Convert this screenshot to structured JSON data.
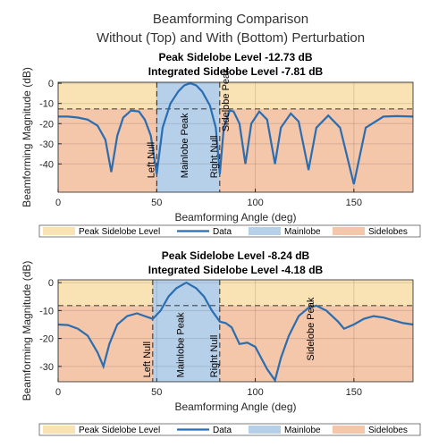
{
  "suptitle": [
    "Beamforming Comparison",
    "Without (Top) and With (Bottom) Perturbation"
  ],
  "chart_data": [
    {
      "type": "line",
      "title": "Peak Sidelobe Level -12.73 dB",
      "subtitle": "Integrated Sidelobe Level -7.81 dB",
      "xlabel": "Beamforming Angle (deg)",
      "ylabel": "Beamforming Magnitude (dB)",
      "xlim": [
        0,
        180
      ],
      "ylim": [
        -54,
        0.5
      ],
      "xticks": [
        0,
        50,
        100,
        150
      ],
      "yticks": [
        -40,
        -30,
        -20,
        -10,
        0
      ],
      "grid": true,
      "peak_sidelobe": {
        "name": "Peak Sidelobe Level",
        "value": -12.73,
        "color": "#f9e2b3"
      },
      "mainlobe": {
        "name": "Mainlobe",
        "left_null": 50,
        "right_null": 82,
        "color": "#b7d0ea"
      },
      "sidelobes": {
        "name": "Sidelobes",
        "color": "#f4c6aa"
      },
      "x": [
        0,
        5,
        10,
        15,
        20,
        24,
        27,
        30,
        33,
        37,
        41,
        44,
        47,
        50,
        53,
        57,
        61,
        64,
        67,
        70,
        73,
        77,
        80,
        82,
        84,
        87,
        89,
        92,
        95,
        98,
        102,
        106,
        110,
        113,
        118,
        122,
        127,
        131,
        137,
        143,
        150,
        156,
        165,
        172,
        180
      ],
      "series": [
        {
          "name": "Data",
          "color": "#2a6db0",
          "values": [
            -16.5,
            -16.5,
            -17,
            -18,
            -21,
            -28,
            -44,
            -26,
            -17,
            -13.5,
            -14,
            -18,
            -26,
            -45,
            -22,
            -10,
            -4,
            -1,
            0,
            -1,
            -4,
            -11,
            -22,
            -45,
            -22,
            -13.5,
            -14,
            -20,
            -40,
            -20,
            -14,
            -18,
            -40,
            -22,
            -15,
            -19,
            -43,
            -22,
            -16,
            -22,
            -50,
            -22,
            -16.5,
            -16.3,
            -16.5
          ]
        }
      ],
      "annotations": [
        {
          "text": "Left Null",
          "x": 50,
          "y": -47
        },
        {
          "text": "Mainlobe Peak",
          "x": 67,
          "y": -47
        },
        {
          "text": "Right Null",
          "x": 82,
          "y": -47
        },
        {
          "text": "Sidelobe Peak",
          "x": 88,
          "y": -24
        }
      ]
    },
    {
      "type": "line",
      "title": "Peak Sidelobe Level -8.24 dB",
      "subtitle": "Integrated Sidelobe Level -4.18 dB",
      "xlabel": "Beamforming Angle (deg)",
      "ylabel": "Beamforming Magnitude (dB)",
      "xlim": [
        0,
        180
      ],
      "ylim": [
        -35.5,
        1
      ],
      "xticks": [
        0,
        50,
        100,
        150
      ],
      "yticks": [
        -30,
        -20,
        -10,
        0
      ],
      "grid": true,
      "peak_sidelobe": {
        "name": "Peak Sidelobe Level",
        "value": -8.24,
        "color": "#f9e2b3"
      },
      "mainlobe": {
        "name": "Mainlobe",
        "left_null": 48,
        "right_null": 82,
        "color": "#b7d0ea"
      },
      "sidelobes": {
        "name": "Sidelobes",
        "color": "#f4c6aa"
      },
      "x": [
        0,
        5,
        10,
        15,
        20,
        23,
        26,
        30,
        35,
        40,
        44,
        48,
        52,
        56,
        60,
        65,
        70,
        74,
        78,
        82,
        85,
        88,
        92,
        96,
        100,
        103,
        106,
        110,
        113,
        117,
        122,
        127,
        131,
        136,
        142,
        145,
        150,
        155,
        160,
        165,
        170,
        175,
        180
      ],
      "series": [
        {
          "name": "Data",
          "color": "#2a6db0",
          "values": [
            -15,
            -15.2,
            -16.5,
            -19,
            -25,
            -30,
            -22,
            -15,
            -12,
            -11,
            -12,
            -13,
            -10,
            -5,
            -2,
            0,
            -2,
            -5,
            -10,
            -14,
            -14.5,
            -16,
            -22,
            -21.5,
            -23,
            -27,
            -31,
            -35,
            -27,
            -19,
            -12,
            -9,
            -8.24,
            -10,
            -14,
            -16.5,
            -15,
            -13,
            -12,
            -12.5,
            -13.5,
            -14.5,
            -15
          ]
        }
      ],
      "annotations": [
        {
          "text": "Left Null",
          "x": 48,
          "y": -34
        },
        {
          "text": "Mainlobe Peak",
          "x": 65,
          "y": -34
        },
        {
          "text": "Right Null",
          "x": 82,
          "y": -34
        },
        {
          "text": "Sidelobe Peak",
          "x": 131,
          "y": -28
        }
      ]
    }
  ]
}
